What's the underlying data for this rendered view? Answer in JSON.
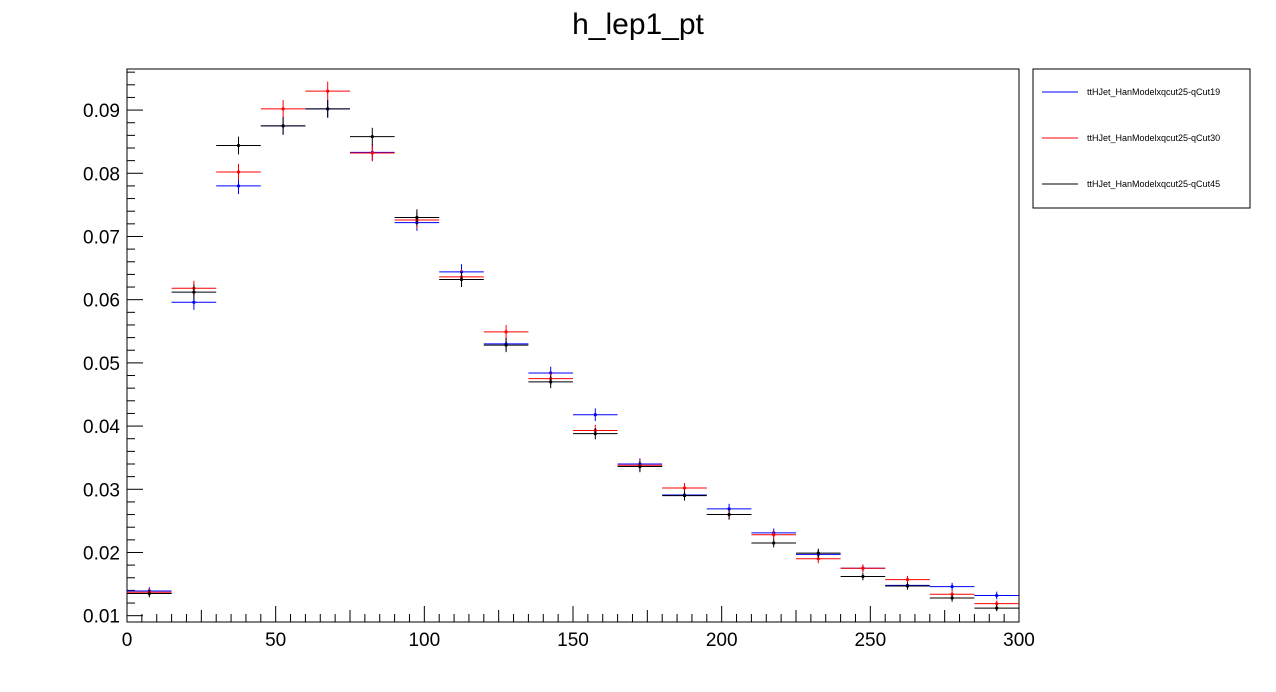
{
  "chart_data": {
    "type": "scatter",
    "title": "h_lep1_pt",
    "xlabel": "",
    "ylabel": "",
    "xlim": [
      0,
      300
    ],
    "ylim": [
      0.009,
      0.0965
    ],
    "x_ticks": [
      0,
      50,
      100,
      150,
      200,
      250,
      300
    ],
    "x_tick_labels": [
      "0",
      "50",
      "100",
      "150",
      "200",
      "250",
      "300"
    ],
    "y_ticks": [
      0.01,
      0.02,
      0.03,
      0.04,
      0.05,
      0.06,
      0.07,
      0.08,
      0.09
    ],
    "y_tick_labels": [
      "0.01",
      "0.02",
      "0.03",
      "0.04",
      "0.05",
      "0.06",
      "0.07",
      "0.08",
      "0.09"
    ],
    "bin_width": 15,
    "x": [
      7.5,
      22.5,
      37.5,
      52.5,
      67.5,
      82.5,
      97.5,
      112.5,
      127.5,
      142.5,
      157.5,
      172.5,
      187.5,
      202.5,
      217.5,
      232.5,
      247.5,
      262.5,
      277.5,
      292.5
    ],
    "grid": false,
    "legend_position": "right",
    "series": [
      {
        "name": "ttHJet_HanModelxqcut25-qCut19",
        "color": "#0000ff",
        "values": [
          0.0139,
          0.0596,
          0.078,
          0.0875,
          0.0902,
          0.0833,
          0.0722,
          0.0644,
          0.053,
          0.0484,
          0.0418,
          0.034,
          0.0291,
          0.0269,
          0.0231,
          0.0197,
          0.0175,
          0.0148,
          0.0146,
          0.0132
        ],
        "errors": [
          0.0006,
          0.0012,
          0.0013,
          0.0014,
          0.0014,
          0.0013,
          0.0013,
          0.0012,
          0.0011,
          0.001,
          0.001,
          0.0009,
          0.0008,
          0.0008,
          0.0007,
          0.0007,
          0.0006,
          0.0006,
          0.0006,
          0.0006
        ]
      },
      {
        "name": "ttHJet_HanModelxqcut25-qCut30",
        "color": "#ff0000",
        "values": [
          0.0137,
          0.0618,
          0.0802,
          0.0902,
          0.093,
          0.0832,
          0.0726,
          0.0636,
          0.0549,
          0.0475,
          0.0393,
          0.0338,
          0.0302,
          0.026,
          0.0228,
          0.019,
          0.0175,
          0.0157,
          0.0134,
          0.0119
        ],
        "errors": [
          0.0006,
          0.0012,
          0.0013,
          0.0014,
          0.0015,
          0.0013,
          0.0013,
          0.0012,
          0.0011,
          0.001,
          0.0009,
          0.0009,
          0.0008,
          0.0008,
          0.0007,
          0.0007,
          0.0006,
          0.0006,
          0.0006,
          0.0005
        ]
      },
      {
        "name": "ttHJet_HanModelxqcut25-qCut45",
        "color": "#000000",
        "values": [
          0.0135,
          0.0612,
          0.0844,
          0.0875,
          0.0902,
          0.0858,
          0.073,
          0.0632,
          0.0528,
          0.047,
          0.0388,
          0.0336,
          0.029,
          0.026,
          0.0215,
          0.0199,
          0.0162,
          0.0147,
          0.0128,
          0.0112
        ],
        "errors": [
          0.0006,
          0.0012,
          0.0014,
          0.0014,
          0.0014,
          0.0014,
          0.0013,
          0.0012,
          0.0011,
          0.001,
          0.0009,
          0.0009,
          0.0008,
          0.0008,
          0.0007,
          0.0007,
          0.0006,
          0.0006,
          0.0006,
          0.0005
        ]
      }
    ]
  }
}
